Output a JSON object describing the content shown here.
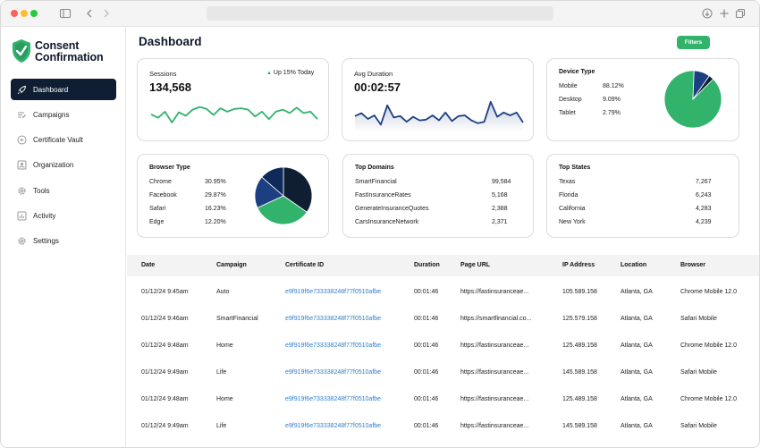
{
  "app": {
    "name_line1": "Consent",
    "name_line2": "Confirmation"
  },
  "sidebar": {
    "items": [
      {
        "label": "Dashboard",
        "icon": "rocket-icon",
        "active": true
      },
      {
        "label": "Campaigns",
        "icon": "list-icon"
      },
      {
        "label": "Certificate Vault",
        "icon": "play-circle-icon"
      },
      {
        "label": "Organization",
        "icon": "user-square-icon"
      },
      {
        "label": "Tools",
        "icon": "gear-icon"
      },
      {
        "label": "Activity",
        "icon": "bar-chart-icon"
      },
      {
        "label": "Settings",
        "icon": "settings-icon"
      }
    ]
  },
  "header": {
    "title": "Dashboard",
    "filters_label": "Filters"
  },
  "colors": {
    "accent_green": "#31b36b",
    "navy": "#0f1e33",
    "blue": "#1d3f82",
    "link": "#2f7fd1"
  },
  "sessions": {
    "label": "Sessions",
    "value": "134,568",
    "trend": "Up 15% Today",
    "sparkline": [
      45,
      40,
      49,
      33,
      48,
      43,
      52,
      56,
      53,
      44,
      54,
      49,
      53,
      54,
      52,
      42,
      49,
      38,
      49,
      52,
      47,
      55,
      47,
      49,
      38
    ]
  },
  "avg_duration": {
    "label": "Avg Duration",
    "value": "00:02:57",
    "sparkline": [
      44,
      48,
      40,
      45,
      32,
      59,
      42,
      44,
      36,
      43,
      38,
      39,
      45,
      38,
      49,
      37,
      44,
      45,
      38,
      34,
      36,
      64,
      43,
      49,
      45,
      49,
      35
    ]
  },
  "device_type": {
    "title": "Device Type",
    "rows": [
      {
        "label": "Mobile",
        "value": "88.12%",
        "pct": 88.12
      },
      {
        "label": "Desktop",
        "value": "9.09%",
        "pct": 9.09
      },
      {
        "label": "Tablet",
        "value": "2.79%",
        "pct": 2.79
      }
    ]
  },
  "browser_type": {
    "title": "Browser Type",
    "rows": [
      {
        "label": "Chrome",
        "value": "30.95%",
        "pct": 30.95
      },
      {
        "label": "Facebook",
        "value": "29.87%",
        "pct": 29.87
      },
      {
        "label": "Safari",
        "value": "16.23%",
        "pct": 16.23
      },
      {
        "label": "Edge",
        "value": "12.20%",
        "pct": 12.2
      }
    ]
  },
  "top_domains": {
    "title": "Top Domains",
    "rows": [
      {
        "label": "SmartFinancial",
        "value": "99,584"
      },
      {
        "label": "FastInsuranceRates",
        "value": "5,168"
      },
      {
        "label": "GenerateInsuranceQuotes",
        "value": "2,388"
      },
      {
        "label": "CarsInsuranceNetwork",
        "value": "2,371"
      }
    ]
  },
  "top_states": {
    "title": "Top States",
    "rows": [
      {
        "label": "Texas",
        "value": "7,267"
      },
      {
        "label": "Florida",
        "value": "6,243"
      },
      {
        "label": "California",
        "value": "4,283"
      },
      {
        "label": "New York",
        "value": "4,239"
      }
    ]
  },
  "table": {
    "columns": [
      "Date",
      "Campaign",
      "Certificate ID",
      "Duration",
      "Page URL",
      "IP Address",
      "Location",
      "Browser"
    ],
    "rows": [
      [
        "01/12/24 9:45am",
        "Auto",
        "e9f919f6e733338248f77f0510afbe",
        "00:01:46",
        "https://fastinsuranceae...",
        "105.589.158",
        "Atlanta, GA",
        "Chrome Mobile 12.0"
      ],
      [
        "01/12/24 9:46am",
        "SmartFinancial",
        "e9f919f6e733338248f77f0510afbe",
        "00:01:46",
        "https://smartfinancial.co...",
        "125.579.158",
        "Atlanta, GA",
        "Safari Mobile"
      ],
      [
        "01/12/24 9:48am",
        "Home",
        "e9f919f6e733338248f77f0510afbe",
        "00:01:46",
        "https://fastinsuranceae...",
        "125.489.158",
        "Atlanta, GA",
        "Chrome Mobile 12.0"
      ],
      [
        "01/12/24 9:49am",
        "Life",
        "e9f919f6e733338248f77f0510afbe",
        "00:01:46",
        "https://fastinsuranceae...",
        "145.589.158",
        "Atlanta, GA",
        "Safari Mobile"
      ],
      [
        "01/12/24 9:48am",
        "Home",
        "e9f919f6e733338248f77f0510afbe",
        "00:01:46",
        "https://fastinsuranceae...",
        "125.489.158",
        "Atlanta, GA",
        "Chrome Mobile 12.0"
      ],
      [
        "01/12/24 9:49am",
        "Life",
        "e9f919f6e733338248f77f0510afbe",
        "00:01:46",
        "https://fastinsuranceae...",
        "145.589.158",
        "Atlanta, GA",
        "Safari Mobile"
      ]
    ]
  }
}
